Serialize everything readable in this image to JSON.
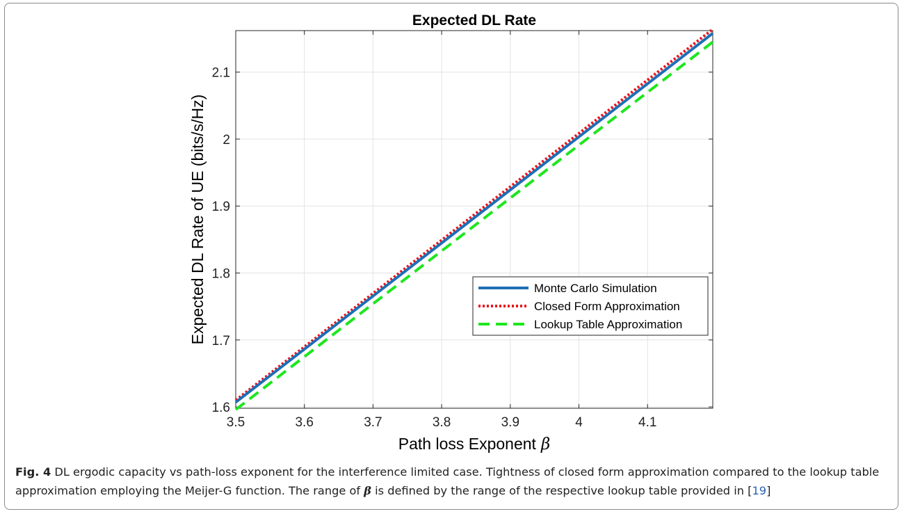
{
  "chart_data": {
    "type": "line",
    "title": "Expected DL Rate",
    "xlabel": "Path loss Exponent",
    "xlabel_symbol": "β",
    "ylabel": "Expected DL Rate of UE (bits/s/Hz)",
    "xlim": [
      3.5,
      4.195
    ],
    "ylim": [
      1.598,
      2.162
    ],
    "xticks": [
      3.5,
      3.6,
      3.7,
      3.8,
      3.9,
      4.0,
      4.1
    ],
    "xtick_labels": [
      "3.5",
      "3.6",
      "3.7",
      "3.8",
      "3.9",
      "4",
      "4.1"
    ],
    "yticks": [
      1.6,
      1.7,
      1.8,
      1.9,
      2.0,
      2.1
    ],
    "ytick_labels": [
      "1.6",
      "1.7",
      "1.8",
      "1.9",
      "2",
      "2.1"
    ],
    "grid": true,
    "legend_position": "lower-right",
    "series": [
      {
        "name": "Monte Carlo Simulation",
        "color": "#1f6fb5",
        "style": "solid",
        "x": [
          3.5,
          4.195
        ],
        "y": [
          1.607,
          2.158
        ]
      },
      {
        "name": "Closed Form Approximation",
        "color": "#e8141c",
        "style": "dotted",
        "x": [
          3.5,
          4.195
        ],
        "y": [
          1.61,
          2.164
        ]
      },
      {
        "name": "Lookup Table Approximation",
        "color": "#1ee61e",
        "style": "dashed",
        "x": [
          3.5,
          4.195
        ],
        "y": [
          1.596,
          2.145
        ]
      }
    ]
  },
  "caption": {
    "label": "Fig. 4",
    "text_part1": " DL ergodic capacity vs path-loss exponent for the interference limited case. Tightness of closed form approximation compared to the lookup table approximation employing the Meijer-G function. The range of ",
    "beta": "β",
    "text_part2": " is defined by the range of the respective lookup table provided in ",
    "ref_open": "[",
    "ref": "19",
    "ref_close": "]"
  }
}
